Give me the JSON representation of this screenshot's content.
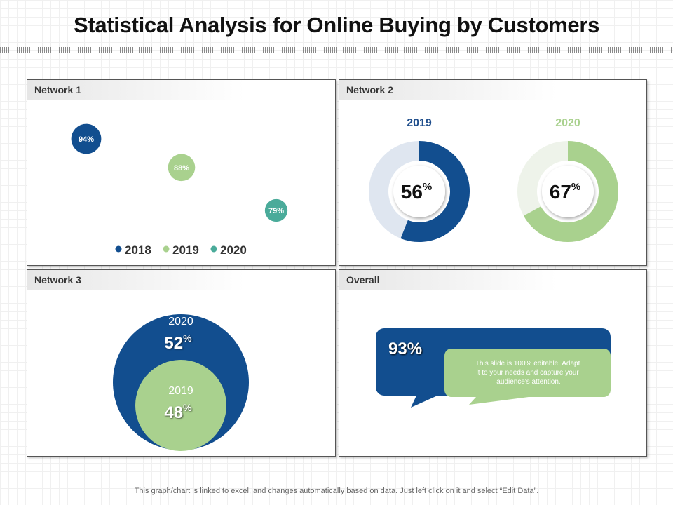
{
  "title": "Statistical Analysis for Online Buying by Customers",
  "colors": {
    "blue": "#124e8f",
    "green": "#a9d18e",
    "teal": "#4aab9a",
    "blue_track": "#dfe6f0",
    "green_track": "#eef3ea"
  },
  "panels": {
    "network1": {
      "label": "Network 1"
    },
    "network2": {
      "label": "Network 2"
    },
    "network3": {
      "label": "Network 3"
    },
    "overall": {
      "label": "Overall"
    }
  },
  "chart_data": [
    {
      "type": "scatter",
      "panel": "Network 1",
      "legend": [
        "2018",
        "2019",
        "2020"
      ],
      "legend_placement": "bottom",
      "points": [
        {
          "series": "2018",
          "value": 94,
          "label": "94%"
        },
        {
          "series": "2019",
          "value": 88,
          "label": "88%"
        },
        {
          "series": "2020",
          "value": 79,
          "label": "79%"
        }
      ]
    },
    {
      "type": "pie",
      "panel": "Network 2",
      "variant": "donut",
      "donuts": [
        {
          "year": "2019",
          "value": 56,
          "label": "56",
          "unit": "%"
        },
        {
          "year": "2020",
          "value": 67,
          "label": "67",
          "unit": "%"
        }
      ]
    },
    {
      "type": "pie",
      "panel": "Network 3",
      "variant": "nested circles",
      "circles": [
        {
          "year": "2020",
          "value": 52,
          "label": "52",
          "unit": "%"
        },
        {
          "year": "2019",
          "value": 48,
          "label": "48",
          "unit": "%"
        }
      ]
    }
  ],
  "overall": {
    "value": "93%",
    "note": [
      "This slide is 100% editable. Adapt",
      "it to your needs and capture your",
      "audience's attention."
    ]
  },
  "footer": "This graph/chart is linked to excel, and changes automatically based on data. Just left click on it and select “Edit Data”."
}
